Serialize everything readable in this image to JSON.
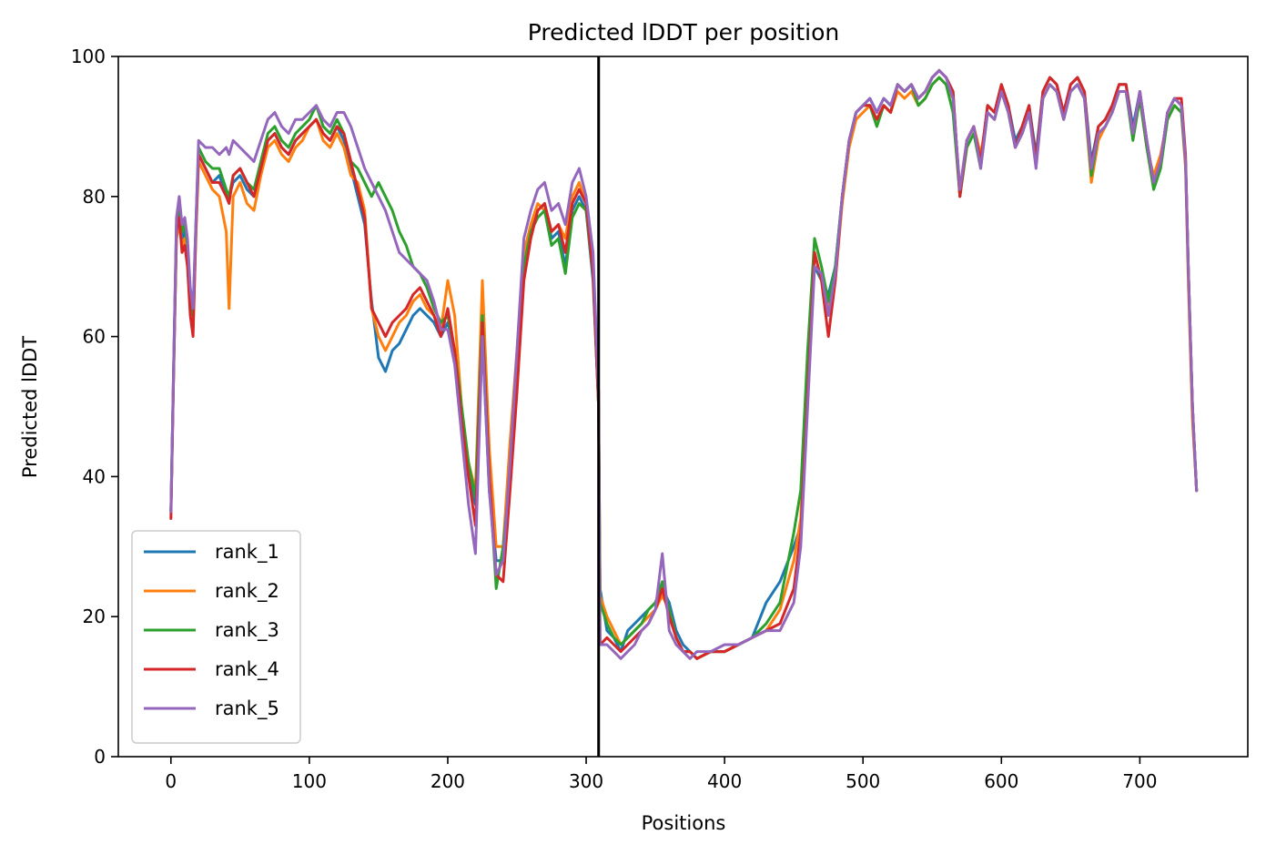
{
  "chart_data": {
    "type": "line",
    "title": "Predicted lDDT per position",
    "xlabel": "Positions",
    "ylabel": "Predicted lDDT",
    "xlim": [
      -38,
      778
    ],
    "ylim": [
      0,
      100
    ],
    "xticks": [
      0,
      100,
      200,
      300,
      400,
      500,
      600,
      700
    ],
    "yticks": [
      0,
      20,
      40,
      60,
      80,
      100
    ],
    "grid": false,
    "legend_position": "lower-left",
    "vline": {
      "x": 309,
      "color": "#000000"
    },
    "x": [
      0,
      2,
      4,
      6,
      8,
      10,
      12,
      14,
      16,
      18,
      20,
      25,
      30,
      35,
      40,
      42,
      45,
      50,
      55,
      60,
      65,
      70,
      75,
      80,
      85,
      90,
      95,
      100,
      105,
      110,
      115,
      120,
      125,
      130,
      135,
      140,
      145,
      150,
      155,
      160,
      165,
      170,
      175,
      180,
      185,
      190,
      195,
      200,
      205,
      210,
      215,
      220,
      225,
      230,
      235,
      240,
      245,
      250,
      255,
      260,
      265,
      270,
      275,
      280,
      285,
      290,
      295,
      300,
      305,
      309,
      310,
      315,
      320,
      325,
      330,
      335,
      340,
      345,
      350,
      355,
      360,
      365,
      370,
      375,
      380,
      390,
      400,
      410,
      420,
      430,
      440,
      450,
      455,
      460,
      465,
      470,
      475,
      480,
      485,
      490,
      495,
      500,
      505,
      510,
      515,
      520,
      525,
      530,
      535,
      540,
      545,
      550,
      555,
      560,
      565,
      570,
      575,
      580,
      585,
      590,
      595,
      600,
      605,
      610,
      615,
      620,
      625,
      630,
      635,
      640,
      645,
      650,
      655,
      660,
      665,
      670,
      675,
      680,
      685,
      690,
      695,
      700,
      705,
      710,
      715,
      720,
      725,
      730,
      733,
      735,
      738,
      741
    ],
    "series": [
      {
        "name": "rank_1",
        "color": "#1f77b4",
        "values": [
          35,
          55,
          75,
          77,
          74,
          75,
          72,
          65,
          62,
          75,
          86,
          84,
          82,
          83,
          80,
          80,
          82,
          83,
          81,
          80,
          84,
          88,
          89,
          87,
          86,
          88,
          89,
          90,
          91,
          89,
          88,
          90,
          88,
          84,
          80,
          76,
          65,
          57,
          55,
          58,
          59,
          61,
          63,
          64,
          63,
          62,
          60,
          62,
          58,
          48,
          40,
          36,
          60,
          38,
          28,
          28,
          42,
          55,
          70,
          75,
          78,
          79,
          74,
          75,
          70,
          78,
          80,
          78,
          68,
          50,
          24,
          18,
          17,
          15,
          18,
          19,
          20,
          21,
          22,
          24,
          22,
          18,
          16,
          15,
          14,
          15,
          15,
          16,
          17,
          22,
          25,
          30,
          33,
          55,
          70,
          68,
          66,
          70,
          80,
          88,
          92,
          93,
          94,
          92,
          94,
          93,
          96,
          95,
          96,
          94,
          95,
          97,
          98,
          97,
          95,
          80,
          88,
          90,
          85,
          93,
          92,
          96,
          93,
          88,
          90,
          93,
          86,
          95,
          97,
          96,
          92,
          96,
          97,
          95,
          85,
          90,
          91,
          93,
          96,
          96,
          90,
          95,
          88,
          82,
          85,
          92,
          94,
          93,
          85,
          70,
          50,
          38
        ]
      },
      {
        "name": "rank_2",
        "color": "#ff7f0e",
        "values": [
          35,
          55,
          74,
          76,
          73,
          74,
          71,
          64,
          61,
          74,
          85,
          83,
          81,
          80,
          75,
          64,
          80,
          82,
          79,
          78,
          83,
          87,
          88,
          86,
          85,
          87,
          88,
          90,
          91,
          88,
          87,
          89,
          87,
          83,
          82,
          78,
          64,
          60,
          58,
          60,
          62,
          63,
          65,
          66,
          64,
          63,
          61,
          68,
          63,
          50,
          42,
          38,
          68,
          44,
          30,
          30,
          45,
          58,
          72,
          76,
          79,
          78,
          75,
          76,
          74,
          80,
          82,
          79,
          70,
          52,
          23,
          20,
          18,
          16,
          17,
          18,
          19,
          20,
          21,
          23,
          21,
          17,
          15,
          15,
          14,
          15,
          15,
          16,
          17,
          18,
          21,
          28,
          34,
          55,
          72,
          68,
          64,
          68,
          79,
          87,
          91,
          92,
          93,
          91,
          93,
          92,
          95,
          94,
          95,
          93,
          94,
          96,
          97,
          96,
          94,
          81,
          88,
          90,
          86,
          92,
          91,
          95,
          92,
          87,
          89,
          92,
          85,
          94,
          96,
          95,
          91,
          95,
          96,
          94,
          82,
          88,
          90,
          92,
          95,
          95,
          89,
          94,
          87,
          83,
          86,
          91,
          93,
          92,
          84,
          68,
          48,
          38
        ]
      },
      {
        "name": "rank_3",
        "color": "#2ca02c",
        "values": [
          35,
          56,
          76,
          78,
          75,
          76,
          73,
          66,
          63,
          76,
          87,
          85,
          84,
          84,
          81,
          80,
          83,
          84,
          82,
          81,
          85,
          89,
          90,
          88,
          87,
          89,
          90,
          91,
          93,
          90,
          89,
          91,
          89,
          85,
          84,
          82,
          80,
          82,
          80,
          78,
          75,
          73,
          70,
          69,
          67,
          64,
          62,
          63,
          58,
          50,
          42,
          37,
          63,
          40,
          24,
          30,
          40,
          54,
          70,
          75,
          77,
          78,
          73,
          74,
          69,
          77,
          79,
          78,
          69,
          50,
          22,
          19,
          17,
          16,
          17,
          18,
          19,
          21,
          22,
          25,
          21,
          17,
          15,
          15,
          14,
          15,
          15,
          16,
          17,
          19,
          22,
          32,
          38,
          58,
          74,
          70,
          65,
          70,
          80,
          88,
          92,
          93,
          93,
          90,
          93,
          92,
          96,
          95,
          96,
          93,
          94,
          96,
          97,
          96,
          92,
          80,
          87,
          89,
          84,
          92,
          91,
          95,
          92,
          87,
          89,
          92,
          85,
          94,
          96,
          95,
          91,
          95,
          96,
          94,
          83,
          89,
          90,
          92,
          95,
          95,
          88,
          94,
          87,
          81,
          84,
          91,
          93,
          92,
          85,
          70,
          50,
          38
        ]
      },
      {
        "name": "rank_4",
        "color": "#d62728",
        "values": [
          34,
          55,
          75,
          77,
          72,
          73,
          70,
          63,
          60,
          75,
          86,
          84,
          82,
          82,
          80,
          79,
          83,
          84,
          82,
          80,
          84,
          88,
          89,
          87,
          86,
          88,
          89,
          90,
          91,
          89,
          88,
          90,
          89,
          85,
          81,
          77,
          64,
          62,
          60,
          62,
          63,
          64,
          66,
          67,
          65,
          63,
          60,
          64,
          58,
          48,
          40,
          33,
          62,
          40,
          26,
          25,
          38,
          52,
          68,
          74,
          78,
          79,
          75,
          76,
          72,
          79,
          81,
          79,
          69,
          50,
          16,
          17,
          16,
          15,
          16,
          17,
          18,
          19,
          21,
          24,
          20,
          17,
          15,
          15,
          14,
          15,
          15,
          16,
          17,
          18,
          19,
          24,
          32,
          52,
          72,
          68,
          60,
          68,
          80,
          88,
          92,
          93,
          93,
          91,
          93,
          92,
          96,
          95,
          96,
          94,
          95,
          97,
          98,
          97,
          95,
          80,
          88,
          90,
          85,
          93,
          92,
          96,
          93,
          87,
          90,
          93,
          85,
          95,
          97,
          96,
          92,
          96,
          97,
          95,
          84,
          90,
          91,
          93,
          96,
          96,
          89,
          95,
          88,
          82,
          85,
          92,
          94,
          94,
          86,
          70,
          50,
          38
        ]
      },
      {
        "name": "rank_5",
        "color": "#9467bd",
        "values": [
          35,
          56,
          77,
          80,
          76,
          77,
          74,
          67,
          64,
          76,
          88,
          87,
          87,
          86,
          87,
          86,
          88,
          87,
          86,
          85,
          88,
          91,
          92,
          90,
          89,
          91,
          91,
          92,
          93,
          91,
          90,
          92,
          92,
          90,
          87,
          84,
          82,
          80,
          78,
          75,
          72,
          71,
          70,
          69,
          68,
          65,
          61,
          61,
          56,
          46,
          36,
          29,
          60,
          38,
          26,
          28,
          42,
          58,
          74,
          78,
          81,
          82,
          78,
          79,
          76,
          82,
          84,
          80,
          72,
          52,
          16,
          16,
          15,
          14,
          15,
          16,
          18,
          19,
          21,
          29,
          18,
          16,
          15,
          14,
          15,
          15,
          16,
          16,
          17,
          18,
          18,
          22,
          30,
          50,
          70,
          69,
          63,
          69,
          80,
          88,
          92,
          93,
          94,
          92,
          94,
          93,
          96,
          95,
          96,
          94,
          95,
          97,
          98,
          97,
          94,
          81,
          88,
          90,
          84,
          92,
          91,
          95,
          92,
          87,
          89,
          92,
          84,
          94,
          96,
          95,
          91,
          95,
          96,
          94,
          84,
          89,
          90,
          92,
          95,
          95,
          89,
          95,
          88,
          82,
          85,
          92,
          94,
          93,
          85,
          70,
          50,
          38
        ]
      }
    ]
  }
}
